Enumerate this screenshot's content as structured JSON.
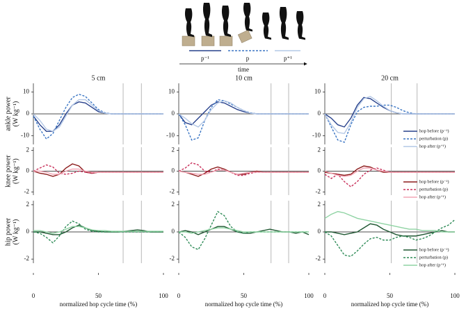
{
  "schematic": {
    "labels": [
      "p⁻¹",
      "p",
      "p⁺¹"
    ],
    "axis_label": "time"
  },
  "chart_data": [
    {
      "type": "line",
      "title": "5 cm",
      "ylabel": [
        "ankle power",
        "(W kg⁻¹)"
      ],
      "x": [
        0,
        5,
        10,
        15,
        20,
        25,
        30,
        35,
        40,
        45,
        50,
        55,
        60,
        65,
        70,
        75,
        80,
        85,
        90,
        95,
        100
      ],
      "xlim": [
        0,
        100
      ],
      "ylim": [
        -14,
        14
      ],
      "yticks": [
        -10,
        0,
        10
      ],
      "vlines": [
        69,
        83
      ],
      "series": [
        {
          "color": "#27408b",
          "values": [
            -1,
            -5,
            -8,
            -8,
            -5,
            0,
            4,
            5.5,
            5,
            3,
            1,
            0.3,
            0,
            0,
            0,
            0,
            0,
            0,
            0,
            0,
            0
          ]
        },
        {
          "color": "#3a75c4",
          "dashed": true,
          "values": [
            -1,
            -7,
            -11.5,
            -9,
            -3,
            3,
            7.5,
            9,
            8,
            5,
            2,
            0.5,
            0,
            0,
            0,
            0,
            0,
            0,
            0,
            0,
            0
          ]
        },
        {
          "color": "#b4c8e6",
          "values": [
            0,
            -3,
            -7,
            -8,
            -6,
            -1,
            4,
            6.5,
            6.5,
            4,
            1.5,
            0.3,
            0,
            0,
            0,
            0,
            0,
            0,
            0,
            0,
            0
          ]
        }
      ]
    },
    {
      "type": "line",
      "title": "10 cm",
      "x": [
        0,
        5,
        10,
        15,
        20,
        25,
        30,
        35,
        40,
        45,
        50,
        55,
        60,
        65,
        70,
        75,
        80,
        85,
        90,
        95,
        100
      ],
      "xlim": [
        0,
        100
      ],
      "ylim": [
        -14,
        14
      ],
      "yticks": [
        -10,
        0,
        10
      ],
      "vlines": [
        71,
        84.5
      ],
      "series": [
        {
          "color": "#27408b",
          "values": [
            0,
            -4,
            -5,
            -2,
            1,
            4,
            5.5,
            5,
            3.5,
            2,
            1,
            0.3,
            0,
            0,
            0,
            0,
            0,
            0,
            0,
            0,
            0
          ]
        },
        {
          "color": "#3a75c4",
          "dashed": true,
          "values": [
            0,
            -5,
            -12,
            -11,
            -3,
            3,
            6.5,
            6,
            4.5,
            3,
            1.5,
            0.5,
            0,
            0,
            0,
            0,
            0,
            0,
            0,
            0,
            0
          ]
        },
        {
          "color": "#b4c8e6",
          "values": [
            0,
            -2,
            -4.5,
            -6,
            -3,
            2,
            5,
            6,
            5,
            3,
            1.5,
            0.3,
            0,
            0,
            0,
            0,
            0,
            0,
            0,
            0,
            0
          ]
        }
      ]
    },
    {
      "type": "line",
      "title": "20 cm",
      "legend": "lower right",
      "x": [
        0,
        5,
        10,
        15,
        20,
        25,
        30,
        35,
        40,
        45,
        50,
        55,
        60,
        65,
        70,
        75,
        80,
        85,
        90,
        95,
        100
      ],
      "xlim": [
        0,
        100
      ],
      "ylim": [
        -14,
        14
      ],
      "yticks": [
        -10,
        0,
        10
      ],
      "vlines": [
        51,
        71
      ],
      "series": [
        {
          "name": "hop before (p⁻¹)",
          "color": "#27408b",
          "values": [
            0,
            -2,
            -5,
            -6,
            -2,
            4,
            7.5,
            7,
            5,
            3,
            1.5,
            0.5,
            0,
            0,
            0,
            0,
            0,
            0,
            0,
            0,
            0
          ]
        },
        {
          "name": "perturbation (p)",
          "color": "#3a75c4",
          "dashed": true,
          "values": [
            0,
            -6,
            -12,
            -13,
            -5,
            1,
            3,
            3.5,
            3.5,
            4,
            4,
            3,
            1.5,
            0.5,
            0,
            0,
            0,
            0,
            0,
            0,
            0
          ]
        },
        {
          "name": "hop after (p⁺¹)",
          "color": "#b4c8e6",
          "values": [
            0,
            -5,
            -8.5,
            -9,
            -4,
            3,
            7,
            8,
            6,
            3.5,
            1.5,
            0.5,
            0,
            0,
            0,
            0,
            0,
            0,
            0,
            0,
            0
          ]
        }
      ]
    },
    {
      "type": "line",
      "ylabel": [
        "knee power",
        "(W kg⁻¹)"
      ],
      "x": [
        0,
        5,
        10,
        15,
        20,
        25,
        30,
        35,
        40,
        45,
        50,
        55,
        60,
        65,
        70,
        75,
        80,
        85,
        90,
        95,
        100
      ],
      "xlim": [
        0,
        100
      ],
      "ylim": [
        -2.3,
        2.3
      ],
      "yticks": [
        -2,
        0,
        2
      ],
      "vlines": [
        69,
        83
      ],
      "series": [
        {
          "color": "#8b1a1a",
          "values": [
            0,
            -0.2,
            -0.3,
            -0.5,
            -0.3,
            0.3,
            0.7,
            0.5,
            -0.1,
            -0.2,
            -0.1,
            -0.1,
            -0.1,
            -0.1,
            -0.1,
            -0.1,
            -0.1,
            -0.1,
            -0.1,
            -0.1,
            -0.1
          ]
        },
        {
          "color": "#c8305a",
          "dashed": true,
          "values": [
            0,
            0.3,
            0.6,
            0.4,
            -0.2,
            -0.3,
            -0.2,
            0,
            -0.1,
            -0.2,
            -0.1,
            -0.1,
            -0.1,
            -0.1,
            -0.1,
            -0.1,
            -0.1,
            -0.1,
            -0.1,
            -0.1,
            -0.1
          ]
        },
        {
          "color": "#f2a5b5",
          "values": [
            0,
            0,
            -0.1,
            -0.3,
            -0.3,
            0,
            0.2,
            0.2,
            0,
            -0.1,
            -0.1,
            -0.1,
            -0.1,
            -0.1,
            -0.1,
            -0.1,
            -0.1,
            -0.1,
            -0.1,
            -0.1,
            -0.1
          ]
        }
      ]
    },
    {
      "type": "line",
      "x": [
        0,
        5,
        10,
        15,
        20,
        25,
        30,
        35,
        40,
        45,
        50,
        55,
        60,
        65,
        70,
        75,
        80,
        85,
        90,
        95,
        100
      ],
      "xlim": [
        0,
        100
      ],
      "ylim": [
        -2.3,
        2.3
      ],
      "yticks": [
        -2,
        0,
        2
      ],
      "vlines": [
        71,
        84.5
      ],
      "series": [
        {
          "color": "#8b1a1a",
          "values": [
            0,
            -0.1,
            -0.3,
            -0.5,
            -0.2,
            0.2,
            0.4,
            0.2,
            -0.1,
            -0.3,
            -0.3,
            -0.1,
            0,
            -0.1,
            -0.1,
            -0.1,
            -0.1,
            -0.1,
            -0.1,
            -0.1,
            -0.1
          ]
        },
        {
          "color": "#c8305a",
          "dashed": true,
          "values": [
            0,
            0.3,
            0.8,
            0.6,
            0,
            -0.1,
            0.2,
            0.1,
            -0.1,
            -0.4,
            -0.4,
            -0.2,
            -0.1,
            -0.1,
            -0.1,
            -0.1,
            -0.1,
            -0.1,
            -0.1,
            -0.1,
            -0.1
          ]
        },
        {
          "color": "#f2a5b5",
          "values": [
            0,
            -0.1,
            -0.2,
            -0.3,
            -0.3,
            -0.1,
            0.1,
            0.1,
            -0.1,
            -0.3,
            -0.2,
            -0.1,
            -0.1,
            -0.1,
            -0.1,
            -0.1,
            -0.1,
            -0.1,
            -0.1,
            -0.1,
            -0.1
          ]
        }
      ]
    },
    {
      "type": "line",
      "legend": "lower right",
      "x": [
        0,
        5,
        10,
        15,
        20,
        25,
        30,
        35,
        40,
        45,
        50,
        55,
        60,
        65,
        70,
        75,
        80,
        85,
        90,
        95,
        100
      ],
      "xlim": [
        0,
        100
      ],
      "ylim": [
        -2.3,
        2.3
      ],
      "yticks": [
        -2,
        0,
        2
      ],
      "vlines": [
        51,
        71
      ],
      "series": [
        {
          "name": "hop before (p⁻¹)",
          "color": "#8b1a1a",
          "values": [
            -0.1,
            -0.2,
            -0.3,
            -0.4,
            -0.3,
            0.2,
            0.5,
            0.4,
            0.1,
            -0.1,
            -0.1,
            -0.1,
            -0.1,
            -0.1,
            -0.1,
            -0.1,
            -0.1,
            -0.1,
            -0.1,
            -0.1,
            -0.1
          ]
        },
        {
          "name": "perturbation (p)",
          "color": "#c8305a",
          "dashed": true,
          "values": [
            -0.3,
            -0.7,
            -0.3,
            -1,
            -1.5,
            -1,
            -0.3,
            0.1,
            0.3,
            0.1,
            -0.1,
            -0.1,
            -0.1,
            -0.1,
            -0.1,
            -0.1,
            -0.1,
            -0.1,
            -0.1,
            -0.1,
            -0.1
          ]
        },
        {
          "name": "hop after (p⁺¹)",
          "color": "#f2a5b5",
          "values": [
            0,
            -0.2,
            -0.4,
            -0.5,
            -0.4,
            0,
            0.3,
            0.3,
            0.1,
            0,
            -0.1,
            -0.1,
            -0.1,
            -0.1,
            -0.1,
            -0.1,
            -0.1,
            -0.1,
            -0.1,
            -0.1,
            -0.1
          ]
        }
      ]
    },
    {
      "type": "line",
      "ylabel": [
        "hip power",
        "(W kg⁻¹)"
      ],
      "xlabel": "normalized hop cycle time (%)",
      "x": [
        0,
        5,
        10,
        15,
        20,
        25,
        30,
        35,
        40,
        45,
        50,
        55,
        60,
        65,
        70,
        75,
        80,
        85,
        90,
        95,
        100
      ],
      "xlim": [
        0,
        100
      ],
      "xticks": [
        0,
        50,
        100
      ],
      "ylim": [
        -2.3,
        2.3
      ],
      "yticks": [
        -2,
        0,
        2
      ],
      "vlines": [
        69,
        83
      ],
      "series": [
        {
          "color": "#1e5631",
          "values": [
            0,
            0,
            -0.1,
            -0.2,
            -0.2,
            0,
            0.3,
            0.5,
            0.3,
            0.1,
            0.05,
            0,
            0,
            0,
            0.05,
            0.1,
            0.15,
            0.1,
            0,
            0,
            0
          ]
        },
        {
          "color": "#2e8b57",
          "dashed": true,
          "values": [
            0,
            -0.1,
            -0.4,
            -0.8,
            -0.3,
            0.4,
            0.8,
            0.6,
            0.2,
            0.05,
            0,
            0,
            0,
            0,
            0,
            0,
            0,
            0,
            0,
            0,
            0
          ]
        },
        {
          "color": "#8fd3a3",
          "values": [
            0.1,
            0.1,
            0,
            -0.1,
            0,
            0.2,
            0.4,
            0.4,
            0.3,
            0.15,
            0.1,
            0.1,
            0.05,
            0.05,
            0.05,
            0.05,
            0.05,
            0.05,
            0.05,
            0.05,
            0.05
          ]
        }
      ]
    },
    {
      "type": "line",
      "xlabel": "normalized hop cycle time (%)",
      "x": [
        0,
        5,
        10,
        15,
        20,
        25,
        30,
        35,
        40,
        45,
        50,
        55,
        60,
        65,
        70,
        75,
        80,
        85,
        90,
        95,
        100
      ],
      "xlim": [
        0,
        100
      ],
      "xticks": [
        0,
        50,
        100
      ],
      "ylim": [
        -2.3,
        2.3
      ],
      "yticks": [
        -2,
        0,
        2
      ],
      "vlines": [
        71,
        84.5
      ],
      "series": [
        {
          "color": "#1e5631",
          "values": [
            0,
            0.1,
            0,
            -0.2,
            0,
            0.2,
            0.4,
            0.4,
            0.2,
            0,
            -0.1,
            -0.1,
            0,
            0.1,
            0.2,
            0.1,
            0,
            0,
            -0.1,
            0,
            -0.2
          ]
        },
        {
          "color": "#2e8b57",
          "dashed": true,
          "values": [
            0,
            -0.4,
            -1.1,
            -1.3,
            -0.5,
            0.5,
            1.5,
            1.2,
            0.4,
            0,
            -0.1,
            0,
            0,
            0,
            0,
            0,
            0,
            0,
            0,
            0,
            0
          ]
        },
        {
          "color": "#8fd3a3",
          "values": [
            0,
            0,
            -0.1,
            0,
            0.1,
            0.2,
            0.3,
            0.3,
            0.2,
            0.1,
            0,
            0,
            0,
            0,
            0,
            0,
            0,
            0,
            0,
            0,
            0
          ]
        }
      ]
    },
    {
      "type": "line",
      "legend": "lower right",
      "xlabel": "normalized hop cycle time (%)",
      "x": [
        0,
        5,
        10,
        15,
        20,
        25,
        30,
        35,
        40,
        45,
        50,
        55,
        60,
        65,
        70,
        75,
        80,
        85,
        90,
        95,
        100
      ],
      "xlim": [
        0,
        100
      ],
      "xticks": [
        0,
        50,
        100
      ],
      "ylim": [
        -2.3,
        2.3
      ],
      "yticks": [
        -2,
        0,
        2
      ],
      "vlines": [
        51,
        71
      ],
      "series": [
        {
          "name": "hop before (p⁻¹)",
          "color": "#1e5631",
          "values": [
            0,
            0,
            -0.1,
            -0.2,
            -0.1,
            0,
            0.3,
            0.6,
            0.5,
            0.2,
            0,
            -0.2,
            -0.3,
            -0.3,
            -0.3,
            -0.2,
            -0.1,
            0,
            0.1,
            0,
            0
          ]
        },
        {
          "name": "perturbation (p)",
          "color": "#2e8b57",
          "dashed": true,
          "values": [
            0,
            -0.3,
            -1,
            -1.7,
            -1.8,
            -1.4,
            -0.9,
            -0.5,
            -0.4,
            -0.6,
            -0.6,
            -0.4,
            -0.3,
            -0.4,
            -0.6,
            -0.5,
            -0.3,
            0,
            0.3,
            0.5,
            0.9
          ]
        },
        {
          "name": "hop after (p⁺¹)",
          "color": "#8fd3a3",
          "values": [
            1,
            1.3,
            1.5,
            1.4,
            1.2,
            1,
            0.9,
            0.8,
            0.7,
            0.6,
            0.5,
            0.4,
            0.3,
            0.2,
            0.2,
            0.1,
            0.1,
            0.1,
            0,
            0,
            0
          ]
        }
      ]
    }
  ]
}
